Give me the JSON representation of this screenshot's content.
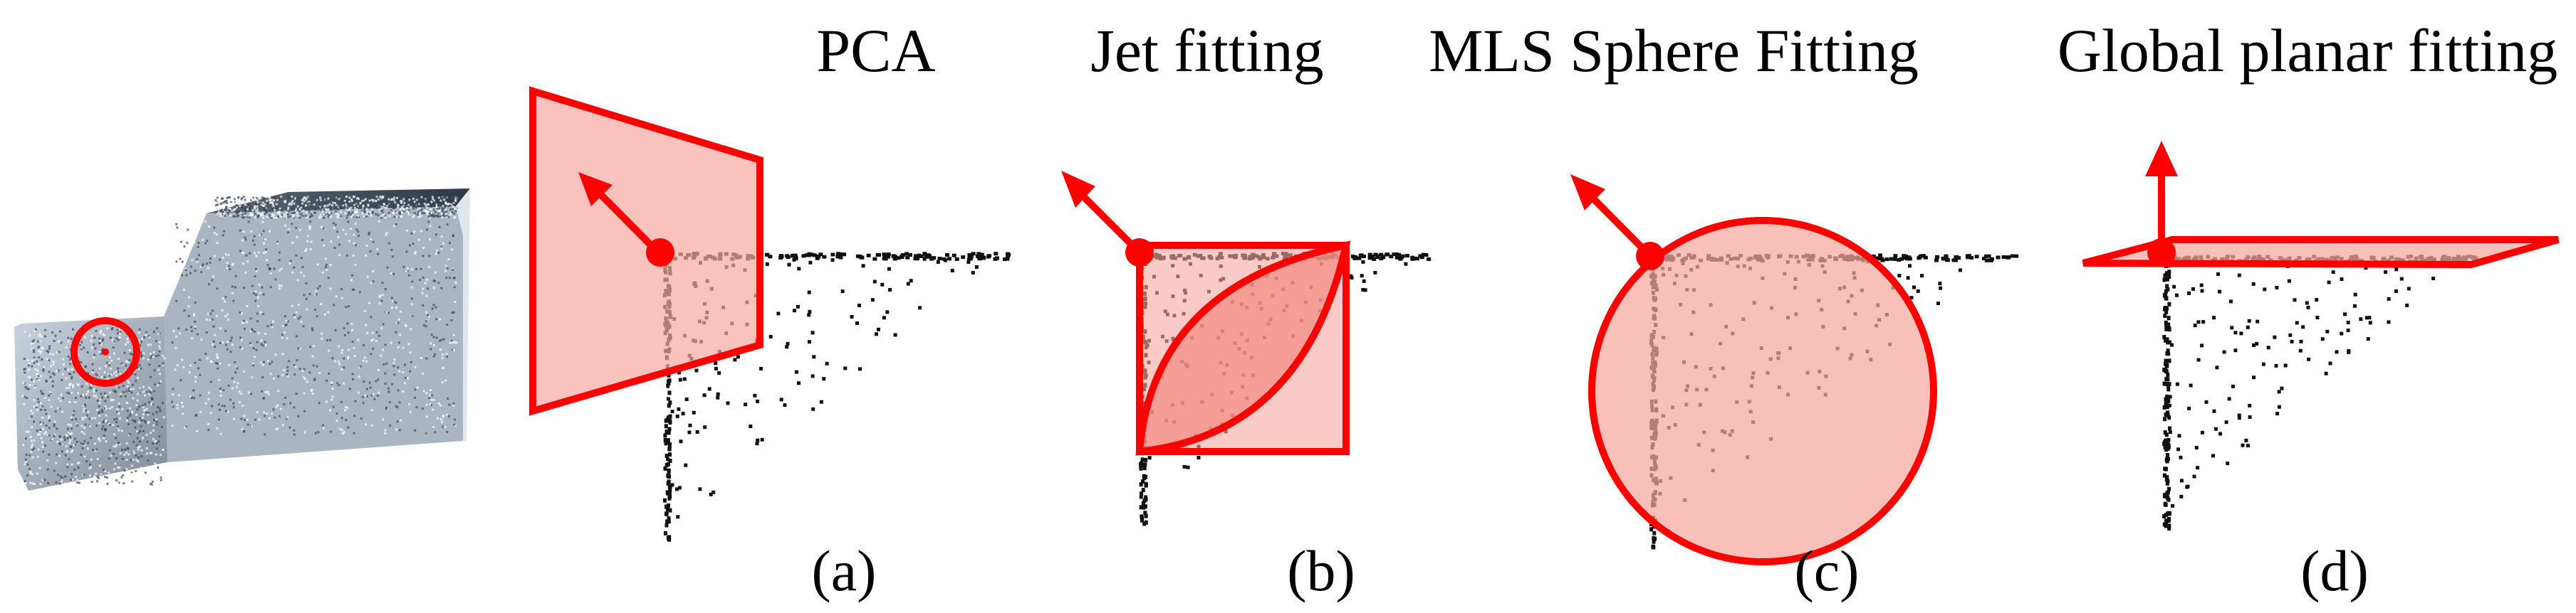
{
  "colors": {
    "accent": "#ff0000",
    "fill": "#f7a8a0",
    "point": "#111111"
  },
  "panels": [
    {
      "id": "a",
      "title": "PCA",
      "label": "(a)",
      "method": "plane"
    },
    {
      "id": "b",
      "title": "Jet fitting",
      "label": "(b)",
      "method": "jet"
    },
    {
      "id": "c",
      "title": "MLS Sphere Fitting",
      "label": "(c)",
      "method": "sphere"
    },
    {
      "id": "d",
      "title": "Global planar fitting",
      "label": "(d)",
      "method": "global-plane"
    }
  ],
  "object": {
    "icon": "point-cloud-car-icon",
    "highlight": "query-point-circle"
  }
}
